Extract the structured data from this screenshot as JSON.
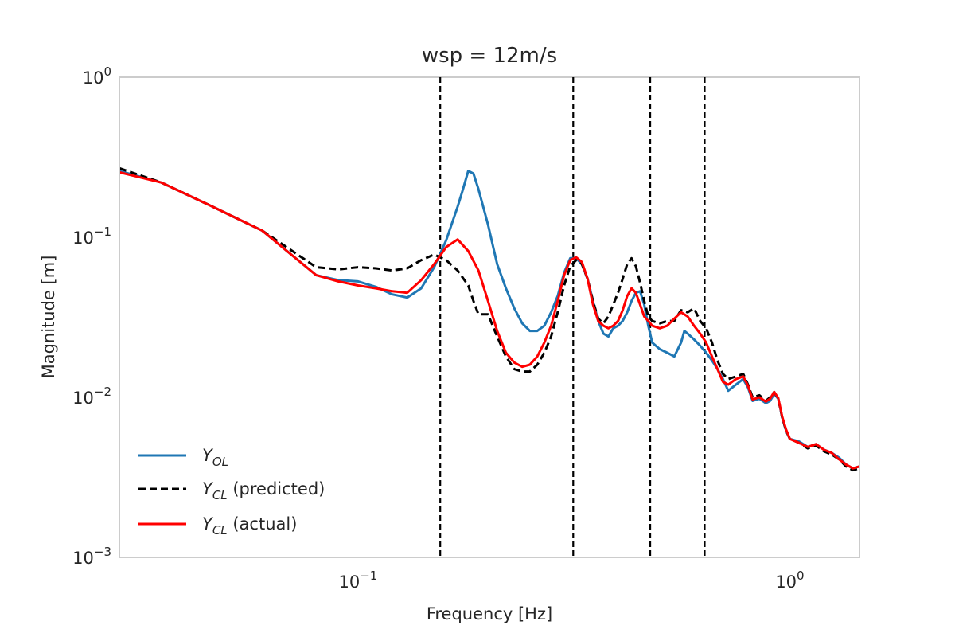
{
  "chart_data": {
    "type": "line",
    "title": "wsp = 12m/s",
    "xlabel": "Frequency [Hz]",
    "ylabel": "Magnitude [m]",
    "xscale": "log",
    "yscale": "log",
    "xlim": [
      0.028,
      1.45
    ],
    "ylim": [
      0.001,
      1
    ],
    "grid": false,
    "legend_position": "lower-left",
    "x_ticks": [
      {
        "base": "10",
        "exp": "−1",
        "value": 0.1
      },
      {
        "base": "10",
        "exp": "0",
        "value": 1
      }
    ],
    "y_ticks": [
      {
        "base": "10",
        "exp": "−3",
        "value": 0.001
      },
      {
        "base": "10",
        "exp": "−2",
        "value": 0.01
      },
      {
        "base": "10",
        "exp": "−1",
        "value": 0.1
      },
      {
        "base": "10",
        "exp": "0",
        "value": 1
      }
    ],
    "vlines": [
      0.155,
      0.315,
      0.475,
      0.635
    ],
    "series": [
      {
        "name_main": "Y",
        "name_sub": "OL",
        "name_suffix": "",
        "color": "#1f77b4",
        "style": "solid",
        "points": [
          [
            0.028,
            0.26
          ],
          [
            0.035,
            0.22
          ],
          [
            0.045,
            0.16
          ],
          [
            0.06,
            0.11
          ],
          [
            0.08,
            0.058
          ],
          [
            0.09,
            0.054
          ],
          [
            0.1,
            0.053
          ],
          [
            0.11,
            0.049
          ],
          [
            0.12,
            0.044
          ],
          [
            0.13,
            0.042
          ],
          [
            0.14,
            0.048
          ],
          [
            0.15,
            0.065
          ],
          [
            0.16,
            0.096
          ],
          [
            0.17,
            0.155
          ],
          [
            0.175,
            0.2
          ],
          [
            0.18,
            0.26
          ],
          [
            0.185,
            0.25
          ],
          [
            0.19,
            0.2
          ],
          [
            0.2,
            0.12
          ],
          [
            0.21,
            0.068
          ],
          [
            0.22,
            0.048
          ],
          [
            0.23,
            0.036
          ],
          [
            0.24,
            0.029
          ],
          [
            0.25,
            0.026
          ],
          [
            0.26,
            0.026
          ],
          [
            0.27,
            0.028
          ],
          [
            0.28,
            0.034
          ],
          [
            0.29,
            0.043
          ],
          [
            0.3,
            0.06
          ],
          [
            0.31,
            0.074
          ],
          [
            0.32,
            0.074
          ],
          [
            0.33,
            0.068
          ],
          [
            0.34,
            0.055
          ],
          [
            0.35,
            0.04
          ],
          [
            0.36,
            0.03
          ],
          [
            0.37,
            0.025
          ],
          [
            0.38,
            0.024
          ],
          [
            0.39,
            0.027
          ],
          [
            0.4,
            0.028
          ],
          [
            0.41,
            0.03
          ],
          [
            0.42,
            0.034
          ],
          [
            0.43,
            0.04
          ],
          [
            0.44,
            0.045
          ],
          [
            0.45,
            0.046
          ],
          [
            0.46,
            0.038
          ],
          [
            0.47,
            0.028
          ],
          [
            0.48,
            0.022
          ],
          [
            0.5,
            0.02
          ],
          [
            0.52,
            0.019
          ],
          [
            0.54,
            0.018
          ],
          [
            0.56,
            0.022
          ],
          [
            0.57,
            0.026
          ],
          [
            0.58,
            0.025
          ],
          [
            0.6,
            0.023
          ],
          [
            0.62,
            0.021
          ],
          [
            0.64,
            0.019
          ],
          [
            0.66,
            0.017
          ],
          [
            0.68,
            0.015
          ],
          [
            0.7,
            0.013
          ],
          [
            0.72,
            0.011
          ],
          [
            0.75,
            0.012
          ],
          [
            0.78,
            0.013
          ],
          [
            0.8,
            0.0115
          ],
          [
            0.82,
            0.0095
          ],
          [
            0.85,
            0.0098
          ],
          [
            0.88,
            0.0092
          ],
          [
            0.9,
            0.0095
          ],
          [
            0.92,
            0.0105
          ],
          [
            0.94,
            0.0098
          ],
          [
            0.96,
            0.0075
          ],
          [
            0.98,
            0.0062
          ],
          [
            1.0,
            0.0055
          ],
          [
            1.05,
            0.0053
          ],
          [
            1.1,
            0.0049
          ],
          [
            1.15,
            0.0051
          ],
          [
            1.2,
            0.0047
          ],
          [
            1.25,
            0.0045
          ],
          [
            1.3,
            0.0042
          ],
          [
            1.35,
            0.0038
          ],
          [
            1.4,
            0.0036
          ],
          [
            1.45,
            0.0037
          ]
        ]
      },
      {
        "name_main": "Y",
        "name_sub": "CL",
        "name_suffix": " (predicted)",
        "color": "#000000",
        "style": "dashed",
        "points": [
          [
            0.028,
            0.27
          ],
          [
            0.035,
            0.22
          ],
          [
            0.045,
            0.16
          ],
          [
            0.06,
            0.11
          ],
          [
            0.08,
            0.065
          ],
          [
            0.09,
            0.063
          ],
          [
            0.1,
            0.065
          ],
          [
            0.11,
            0.064
          ],
          [
            0.12,
            0.062
          ],
          [
            0.13,
            0.064
          ],
          [
            0.14,
            0.072
          ],
          [
            0.15,
            0.078
          ],
          [
            0.16,
            0.072
          ],
          [
            0.17,
            0.062
          ],
          [
            0.18,
            0.05
          ],
          [
            0.185,
            0.04
          ],
          [
            0.19,
            0.033
          ],
          [
            0.2,
            0.033
          ],
          [
            0.21,
            0.024
          ],
          [
            0.22,
            0.018
          ],
          [
            0.23,
            0.015
          ],
          [
            0.24,
            0.0145
          ],
          [
            0.25,
            0.0145
          ],
          [
            0.26,
            0.016
          ],
          [
            0.27,
            0.019
          ],
          [
            0.28,
            0.024
          ],
          [
            0.29,
            0.034
          ],
          [
            0.3,
            0.05
          ],
          [
            0.31,
            0.066
          ],
          [
            0.32,
            0.072
          ],
          [
            0.33,
            0.068
          ],
          [
            0.34,
            0.055
          ],
          [
            0.35,
            0.04
          ],
          [
            0.36,
            0.031
          ],
          [
            0.37,
            0.029
          ],
          [
            0.38,
            0.032
          ],
          [
            0.39,
            0.038
          ],
          [
            0.4,
            0.045
          ],
          [
            0.41,
            0.055
          ],
          [
            0.42,
            0.068
          ],
          [
            0.43,
            0.074
          ],
          [
            0.44,
            0.066
          ],
          [
            0.45,
            0.052
          ],
          [
            0.46,
            0.04
          ],
          [
            0.47,
            0.032
          ],
          [
            0.48,
            0.03
          ],
          [
            0.5,
            0.029
          ],
          [
            0.52,
            0.03
          ],
          [
            0.54,
            0.03
          ],
          [
            0.56,
            0.035
          ],
          [
            0.58,
            0.034
          ],
          [
            0.6,
            0.036
          ],
          [
            0.62,
            0.03
          ],
          [
            0.64,
            0.027
          ],
          [
            0.66,
            0.022
          ],
          [
            0.68,
            0.017
          ],
          [
            0.7,
            0.014
          ],
          [
            0.72,
            0.013
          ],
          [
            0.75,
            0.0135
          ],
          [
            0.78,
            0.014
          ],
          [
            0.8,
            0.012
          ],
          [
            0.82,
            0.01
          ],
          [
            0.85,
            0.0103
          ],
          [
            0.88,
            0.0095
          ],
          [
            0.9,
            0.01
          ],
          [
            0.92,
            0.0108
          ],
          [
            0.94,
            0.0098
          ],
          [
            0.96,
            0.0075
          ],
          [
            0.98,
            0.0062
          ],
          [
            1.0,
            0.0055
          ],
          [
            1.05,
            0.0052
          ],
          [
            1.1,
            0.0048
          ],
          [
            1.15,
            0.005
          ],
          [
            1.2,
            0.0046
          ],
          [
            1.25,
            0.0044
          ],
          [
            1.3,
            0.0041
          ],
          [
            1.35,
            0.0037
          ],
          [
            1.4,
            0.0035
          ],
          [
            1.45,
            0.0036
          ]
        ]
      },
      {
        "name_main": "Y",
        "name_sub": "CL",
        "name_suffix": " (actual)",
        "color": "#ff0000",
        "style": "solid",
        "points": [
          [
            0.028,
            0.255
          ],
          [
            0.035,
            0.22
          ],
          [
            0.045,
            0.16
          ],
          [
            0.06,
            0.11
          ],
          [
            0.08,
            0.058
          ],
          [
            0.09,
            0.053
          ],
          [
            0.1,
            0.05
          ],
          [
            0.11,
            0.048
          ],
          [
            0.12,
            0.046
          ],
          [
            0.13,
            0.045
          ],
          [
            0.14,
            0.054
          ],
          [
            0.15,
            0.068
          ],
          [
            0.16,
            0.087
          ],
          [
            0.17,
            0.097
          ],
          [
            0.18,
            0.082
          ],
          [
            0.19,
            0.062
          ],
          [
            0.2,
            0.04
          ],
          [
            0.21,
            0.026
          ],
          [
            0.22,
            0.019
          ],
          [
            0.23,
            0.0165
          ],
          [
            0.24,
            0.0155
          ],
          [
            0.25,
            0.016
          ],
          [
            0.26,
            0.018
          ],
          [
            0.27,
            0.022
          ],
          [
            0.28,
            0.028
          ],
          [
            0.29,
            0.04
          ],
          [
            0.3,
            0.058
          ],
          [
            0.31,
            0.072
          ],
          [
            0.32,
            0.075
          ],
          [
            0.33,
            0.07
          ],
          [
            0.34,
            0.055
          ],
          [
            0.35,
            0.038
          ],
          [
            0.36,
            0.03
          ],
          [
            0.37,
            0.028
          ],
          [
            0.38,
            0.027
          ],
          [
            0.39,
            0.028
          ],
          [
            0.4,
            0.03
          ],
          [
            0.41,
            0.035
          ],
          [
            0.42,
            0.043
          ],
          [
            0.43,
            0.048
          ],
          [
            0.44,
            0.045
          ],
          [
            0.45,
            0.038
          ],
          [
            0.46,
            0.032
          ],
          [
            0.47,
            0.03
          ],
          [
            0.48,
            0.028
          ],
          [
            0.5,
            0.027
          ],
          [
            0.52,
            0.028
          ],
          [
            0.54,
            0.031
          ],
          [
            0.56,
            0.034
          ],
          [
            0.58,
            0.032
          ],
          [
            0.6,
            0.028
          ],
          [
            0.62,
            0.025
          ],
          [
            0.64,
            0.022
          ],
          [
            0.66,
            0.018
          ],
          [
            0.68,
            0.015
          ],
          [
            0.7,
            0.0125
          ],
          [
            0.72,
            0.012
          ],
          [
            0.75,
            0.013
          ],
          [
            0.78,
            0.0135
          ],
          [
            0.8,
            0.0118
          ],
          [
            0.82,
            0.0097
          ],
          [
            0.85,
            0.01
          ],
          [
            0.88,
            0.0094
          ],
          [
            0.9,
            0.0098
          ],
          [
            0.92,
            0.0108
          ],
          [
            0.94,
            0.0099
          ],
          [
            0.96,
            0.0076
          ],
          [
            0.98,
            0.0063
          ],
          [
            1.0,
            0.0055
          ],
          [
            1.05,
            0.0052
          ],
          [
            1.1,
            0.0049
          ],
          [
            1.15,
            0.0051
          ],
          [
            1.2,
            0.0047
          ],
          [
            1.25,
            0.0045
          ],
          [
            1.3,
            0.0041
          ],
          [
            1.35,
            0.0038
          ],
          [
            1.4,
            0.0036
          ],
          [
            1.45,
            0.0037
          ]
        ]
      }
    ]
  }
}
